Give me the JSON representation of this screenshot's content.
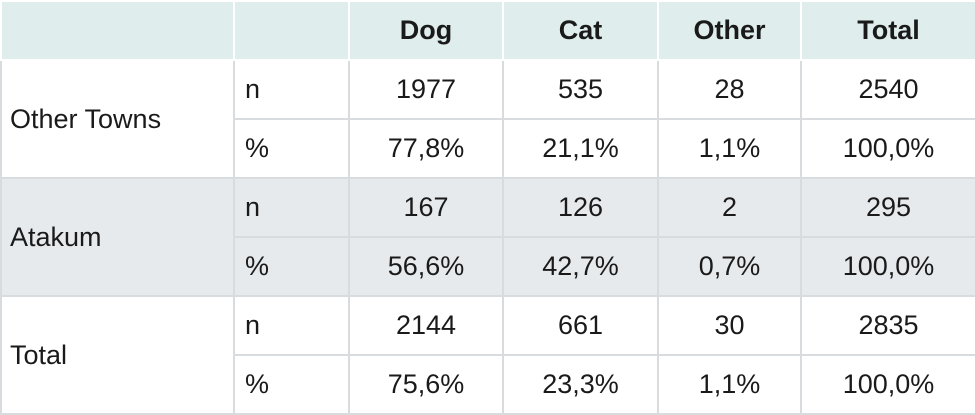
{
  "table": {
    "header": [
      "Dog",
      "Cat",
      "Other",
      "Total"
    ],
    "groups": [
      {
        "label": "Other Towns",
        "rows": [
          {
            "stat": "n",
            "cells": [
              "1977",
              "535",
              "28",
              "2540"
            ]
          },
          {
            "stat": "%",
            "cells": [
              "77,8%",
              "21,1%",
              "1,1%",
              "100,0%"
            ]
          }
        ]
      },
      {
        "label": "Atakum",
        "rows": [
          {
            "stat": "n",
            "cells": [
              "167",
              "126",
              "2",
              "295"
            ]
          },
          {
            "stat": "%",
            "cells": [
              "56,6%",
              "42,7%",
              "0,7%",
              "100,0%"
            ]
          }
        ]
      },
      {
        "label": "Total",
        "rows": [
          {
            "stat": "n",
            "cells": [
              "2144",
              "661",
              "30",
              "2835"
            ]
          },
          {
            "stat": "%",
            "cells": [
              "75,6%",
              "23,3%",
              "1,1%",
              "100,0%"
            ]
          }
        ]
      }
    ]
  }
}
